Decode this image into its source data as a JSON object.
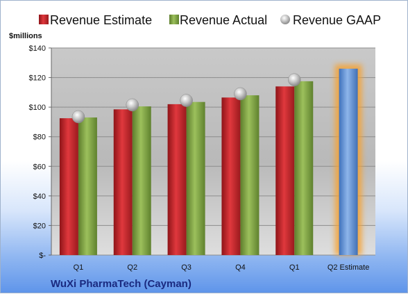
{
  "chart_data": {
    "type": "bar",
    "ylabel": "$millions",
    "ylim": [
      0,
      140
    ],
    "yticks": [
      0,
      20,
      40,
      60,
      80,
      100,
      120,
      140
    ],
    "ytick_labels": [
      "$-",
      "$20",
      "$40",
      "$60",
      "$80",
      "$100",
      "$120",
      "$140"
    ],
    "categories": [
      "Q1",
      "Q2",
      "Q3",
      "Q4",
      "Q1",
      "Q2 Estimate"
    ],
    "series": [
      {
        "name": "Revenue Estimate",
        "kind": "bar",
        "color": "#c0282d",
        "values": [
          92.5,
          98.5,
          102,
          106.5,
          114,
          null
        ]
      },
      {
        "name": "Revenue Actual",
        "kind": "bar",
        "color": "#7ea346",
        "values": [
          93,
          100.5,
          103.5,
          108,
          117.5,
          null
        ]
      },
      {
        "name": "Revenue GAAP",
        "kind": "marker",
        "color": "#b8b8b8",
        "values": [
          93.5,
          101.5,
          104.5,
          109,
          118.5,
          null
        ]
      },
      {
        "name": "Q2 Estimate",
        "kind": "highlight-bar",
        "color": "#6a98d6",
        "glow": "#f6a230",
        "values": [
          null,
          null,
          null,
          null,
          null,
          126
        ]
      }
    ],
    "legend": [
      "Revenue Estimate",
      "Revenue Actual",
      "Revenue GAAP"
    ],
    "legend_position": "top",
    "grid": true,
    "company": "WuXi PharmaTech (Cayman)"
  }
}
